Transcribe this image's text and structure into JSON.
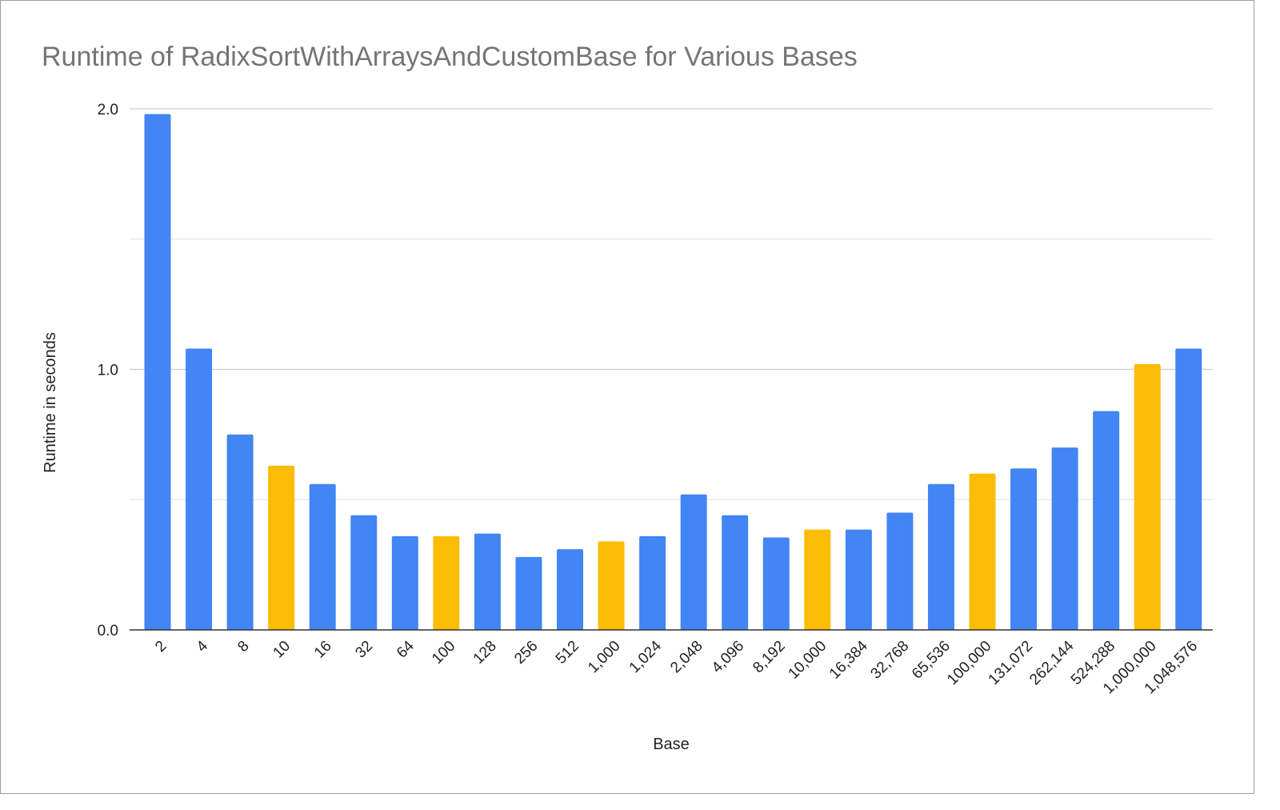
{
  "chart_data": {
    "type": "bar",
    "title": "Runtime of RadixSortWithArraysAndCustomBase for Various Bases",
    "xlabel": "Base",
    "ylabel": "Runtime in seconds",
    "ylim": [
      0,
      2.0
    ],
    "yticks": [
      "0.0",
      "1.0",
      "2.0"
    ],
    "gridlines": [
      0,
      0.5,
      1.0,
      1.5,
      2.0
    ],
    "grid": true,
    "colors": {
      "power_of_two": "#4285f4",
      "power_of_ten": "#fbbc04"
    },
    "categories": [
      "2",
      "4",
      "8",
      "10",
      "16",
      "32",
      "64",
      "100",
      "128",
      "256",
      "512",
      "1,000",
      "1,024",
      "2,048",
      "4,096",
      "8,192",
      "10,000",
      "16,384",
      "32,768",
      "65,536",
      "100,000",
      "131,072",
      "262,144",
      "524,288",
      "1,000,000",
      "1,048,576"
    ],
    "values": [
      1.98,
      1.08,
      0.75,
      0.63,
      0.56,
      0.44,
      0.36,
      0.36,
      0.37,
      0.28,
      0.31,
      0.34,
      0.36,
      0.52,
      0.44,
      0.355,
      0.385,
      0.385,
      0.45,
      0.56,
      0.6,
      0.62,
      0.7,
      0.84,
      1.02,
      1.08
    ],
    "bar_groups": [
      "power_of_two",
      "power_of_two",
      "power_of_two",
      "power_of_ten",
      "power_of_two",
      "power_of_two",
      "power_of_two",
      "power_of_ten",
      "power_of_two",
      "power_of_two",
      "power_of_two",
      "power_of_ten",
      "power_of_two",
      "power_of_two",
      "power_of_two",
      "power_of_two",
      "power_of_ten",
      "power_of_two",
      "power_of_two",
      "power_of_two",
      "power_of_ten",
      "power_of_two",
      "power_of_two",
      "power_of_two",
      "power_of_ten",
      "power_of_two"
    ]
  }
}
